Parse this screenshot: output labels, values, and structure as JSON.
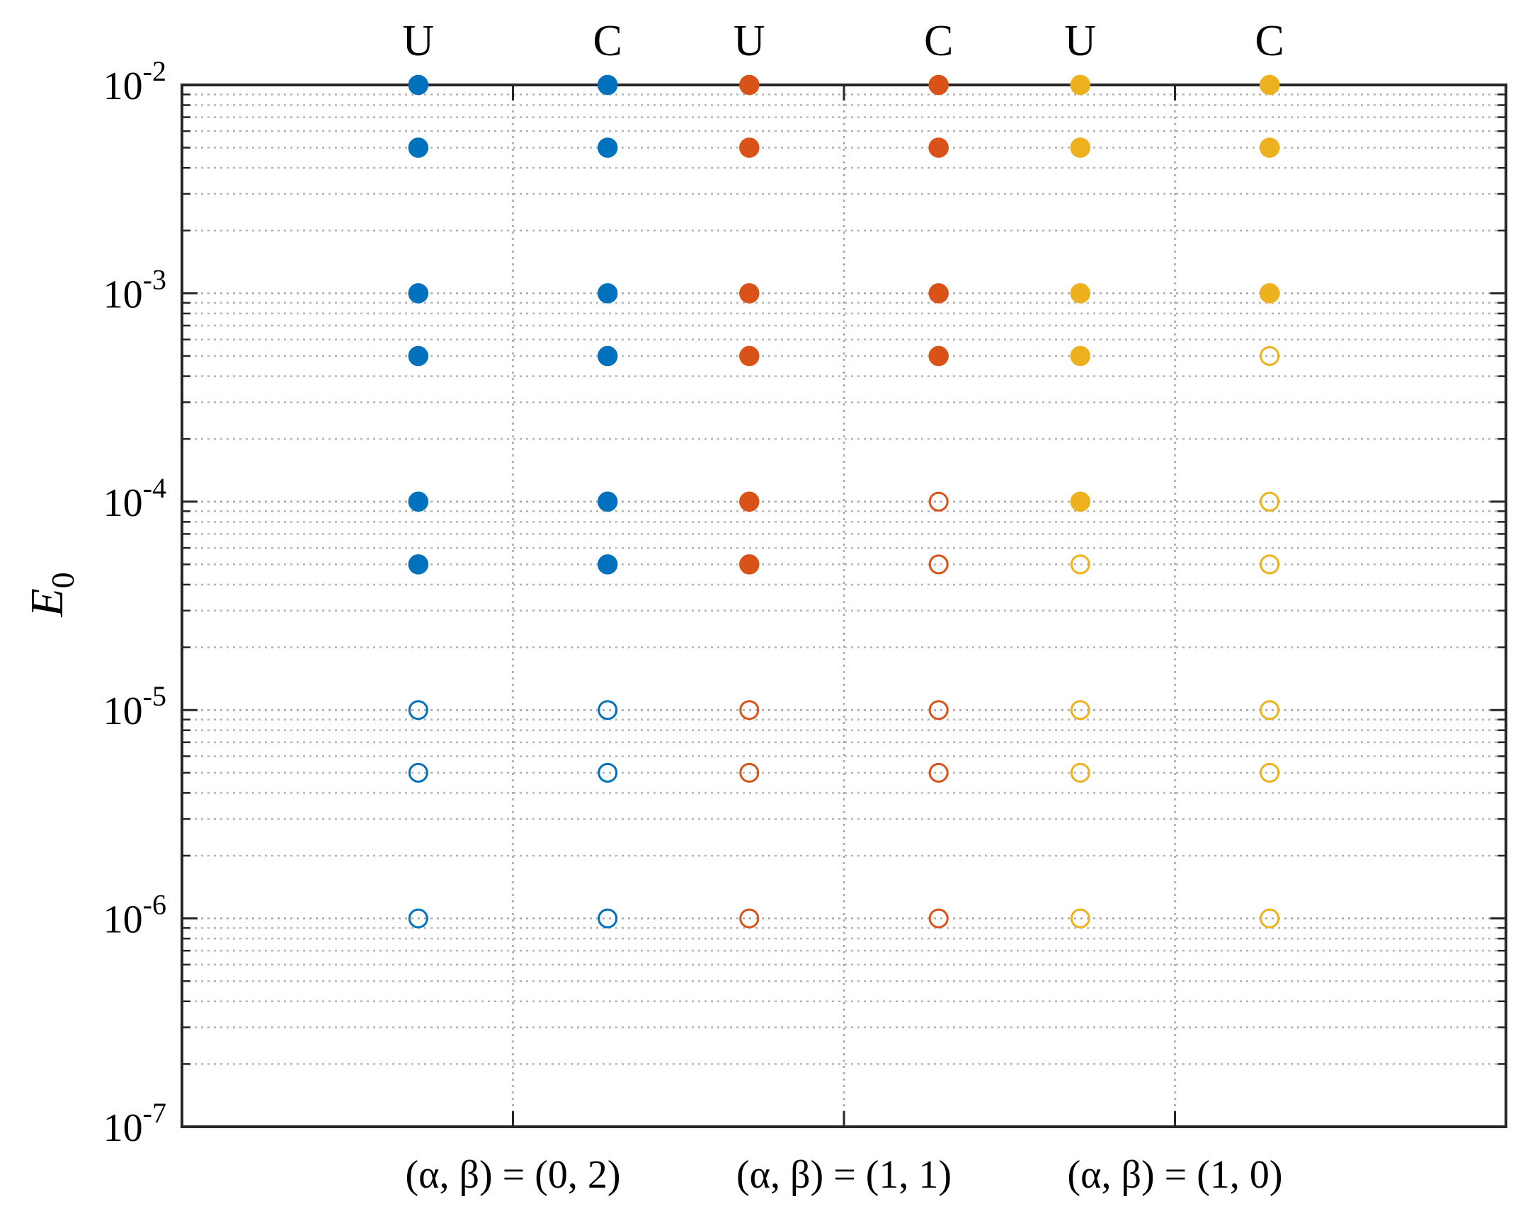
{
  "chart_data": {
    "type": "scatter",
    "title": "",
    "xlabel": "",
    "ylabel": "E0",
    "ylabel_main": "E",
    "ylabel_sub": "0",
    "yscale": "log",
    "ylim": [
      1e-07,
      0.01
    ],
    "grid": true,
    "grid_style": "dotted",
    "categories": [
      "(α, β) = (0, 2)",
      "(α, β) = (1, 1)",
      "(α, β) = (1, 0)"
    ],
    "top_labels": [
      "U",
      "C",
      "U",
      "C",
      "U",
      "C"
    ],
    "y_ticks": [
      {
        "base": "10",
        "exp": "-2"
      },
      {
        "base": "10",
        "exp": "-3"
      },
      {
        "base": "10",
        "exp": "-4"
      },
      {
        "base": "10",
        "exp": "-5"
      },
      {
        "base": "10",
        "exp": "-6"
      },
      {
        "base": "10",
        "exp": "-7"
      }
    ],
    "e0_values": [
      0.01,
      0.005,
      0.001,
      0.0005,
      0.0001,
      5e-05,
      1e-05,
      5e-06,
      1e-06
    ],
    "series": [
      {
        "category": "(α, β) = (0, 2)",
        "label": "U",
        "color": "#0072BD",
        "filled": [
          true,
          true,
          true,
          true,
          true,
          true,
          false,
          false,
          false
        ]
      },
      {
        "category": "(α, β) = (0, 2)",
        "label": "C",
        "color": "#0072BD",
        "filled": [
          true,
          true,
          true,
          true,
          true,
          true,
          false,
          false,
          false
        ]
      },
      {
        "category": "(α, β) = (1, 1)",
        "label": "U",
        "color": "#D95319",
        "filled": [
          true,
          true,
          true,
          true,
          true,
          true,
          false,
          false,
          false
        ]
      },
      {
        "category": "(α, β) = (1, 1)",
        "label": "C",
        "color": "#D95319",
        "filled": [
          true,
          true,
          true,
          true,
          false,
          false,
          false,
          false,
          false
        ]
      },
      {
        "category": "(α, β) = (1, 0)",
        "label": "U",
        "color": "#EDB120",
        "filled": [
          true,
          true,
          true,
          true,
          true,
          false,
          false,
          false,
          false
        ]
      },
      {
        "category": "(α, β) = (1, 0)",
        "label": "C",
        "color": "#EDB120",
        "filled": [
          true,
          true,
          true,
          false,
          false,
          false,
          false,
          false,
          false
        ]
      }
    ]
  }
}
